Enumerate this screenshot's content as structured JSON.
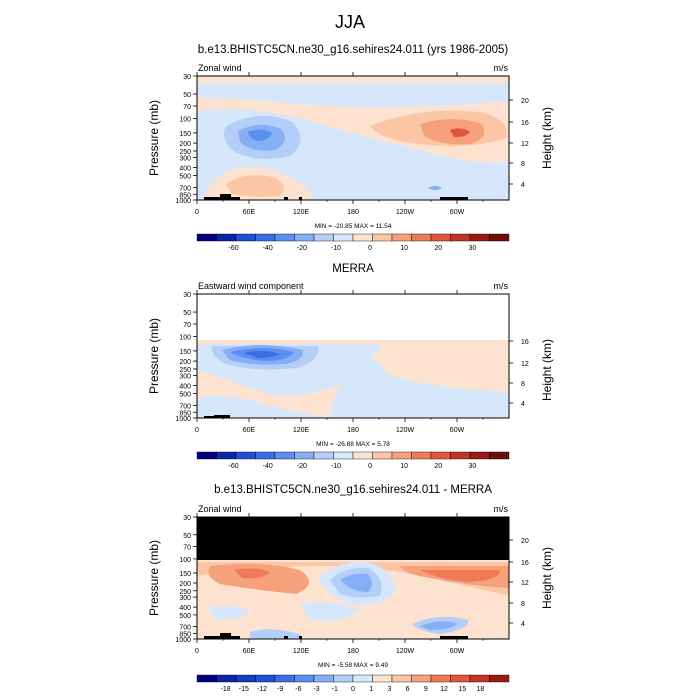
{
  "figure": {
    "title": "JJA"
  },
  "panels": [
    {
      "id": "model",
      "title": "b.e13.BHISTC5CN.ne30_g16.sehires24.011 (yrs 1986-2005)",
      "left_string": "Zonal wind",
      "right_string": "m/s",
      "stats": "MIN = -20.85  MAX =  11.54",
      "ylabel": "Pressure (mb)",
      "y2label": "Height (km)",
      "pressure_ticks": [
        "30",
        "50",
        "70",
        "100",
        "150",
        "200",
        "250",
        "300",
        "400",
        "500",
        "700",
        "850",
        "1000"
      ],
      "height_ticks": [
        "20",
        "16",
        "12",
        "8",
        "4"
      ],
      "lon_ticks": [
        "0",
        "60E",
        "120E",
        "180",
        "120W",
        "60W"
      ],
      "colorbar_labels": [
        "-60",
        "-40",
        "-20",
        "-10",
        "0",
        "10",
        "20",
        "30"
      ],
      "colorbar_colors": [
        "#00007f",
        "#0b24a8",
        "#1f4ed8",
        "#3a6fe6",
        "#5a8ef0",
        "#86aef5",
        "#b3cef8",
        "#d6e6fb",
        "#fde3cf",
        "#fbc6a6",
        "#f6a07c",
        "#ee7a56",
        "#e2553b",
        "#c43426",
        "#9b1a14",
        "#6e0c08"
      ]
    },
    {
      "id": "merra",
      "title": "MERRA",
      "left_string": "Eastward wind component",
      "right_string": "m/s",
      "stats": "MIN = -26.88  MAX =  5.78",
      "ylabel": "Pressure (mb)",
      "y2label": "Height (km)",
      "pressure_ticks": [
        "30",
        "50",
        "70",
        "100",
        "150",
        "200",
        "250",
        "300",
        "400",
        "500",
        "700",
        "850",
        "1000"
      ],
      "height_ticks": [
        "16",
        "12",
        "8",
        "4"
      ],
      "lon_ticks": [
        "0",
        "60E",
        "120E",
        "180",
        "120W",
        "60W"
      ],
      "colorbar_labels": [
        "-60",
        "-40",
        "-20",
        "-10",
        "0",
        "10",
        "20",
        "30"
      ],
      "colorbar_colors": [
        "#00007f",
        "#0b24a8",
        "#1f4ed8",
        "#3a6fe6",
        "#5a8ef0",
        "#86aef5",
        "#b3cef8",
        "#d6e6fb",
        "#fde3cf",
        "#fbc6a6",
        "#f6a07c",
        "#ee7a56",
        "#e2553b",
        "#c43426",
        "#9b1a14",
        "#6e0c08"
      ]
    },
    {
      "id": "diff",
      "title": "b.e13.BHISTC5CN.ne30_g16.sehires24.011 - MERRA",
      "left_string": "Zonal wind",
      "right_string": "m/s",
      "stats": "MIN = -5.58  MAX =  9.49",
      "ylabel": "Pressure (mb)",
      "y2label": "Height (km)",
      "pressure_ticks": [
        "30",
        "50",
        "70",
        "100",
        "150",
        "200",
        "250",
        "300",
        "400",
        "500",
        "700",
        "850",
        "1000"
      ],
      "height_ticks": [
        "20",
        "16",
        "12",
        "8",
        "4"
      ],
      "lon_ticks": [
        "0",
        "60E",
        "120E",
        "180",
        "120W",
        "60W"
      ],
      "colorbar_labels": [
        "-18",
        "-15",
        "-12",
        "-9",
        "-6",
        "-3",
        "-1",
        "0",
        "1",
        "3",
        "6",
        "9",
        "12",
        "15",
        "18"
      ],
      "colorbar_colors": [
        "#00007f",
        "#0b24a8",
        "#163cc4",
        "#1f4ed8",
        "#3a6fe6",
        "#5a8ef0",
        "#86aef5",
        "#b3cef8",
        "#d6e6fb",
        "#fde3cf",
        "#fbc6a6",
        "#f6a07c",
        "#ee7a56",
        "#e2553b",
        "#c43426",
        "#9b1a14"
      ]
    }
  ],
  "chart_data": [
    {
      "type": "heatmap",
      "title": "b.e13.BHISTC5CN.ne30_g16.sehires24.011 (yrs 1986-2005)",
      "variable": "Zonal wind",
      "units": "m/s",
      "x": [
        "0",
        "60E",
        "120E",
        "180",
        "120W",
        "60W"
      ],
      "y_pressure_mb": [
        30,
        50,
        70,
        100,
        150,
        200,
        250,
        300,
        400,
        500,
        700,
        850,
        1000
      ],
      "min": -20.85,
      "max": 11.54,
      "contour_levels": [
        -60,
        -40,
        -20,
        -10,
        0,
        10,
        20,
        30
      ]
    },
    {
      "type": "heatmap",
      "title": "MERRA",
      "variable": "Eastward wind component",
      "units": "m/s",
      "x": [
        "0",
        "60E",
        "120E",
        "180",
        "120W",
        "60W"
      ],
      "y_pressure_mb": [
        30,
        50,
        70,
        100,
        150,
        200,
        250,
        300,
        400,
        500,
        700,
        850,
        1000
      ],
      "min": -26.88,
      "max": 5.78,
      "contour_levels": [
        -60,
        -40,
        -20,
        -10,
        0,
        10,
        20,
        30
      ]
    },
    {
      "type": "heatmap",
      "title": "b.e13.BHISTC5CN.ne30_g16.sehires24.011 - MERRA",
      "variable": "Zonal wind",
      "units": "m/s",
      "x": [
        "0",
        "60E",
        "120E",
        "180",
        "120W",
        "60W"
      ],
      "y_pressure_mb": [
        30,
        50,
        70,
        100,
        150,
        200,
        250,
        300,
        400,
        500,
        700,
        850,
        1000
      ],
      "min": -5.58,
      "max": 9.49,
      "contour_levels": [
        -18,
        -15,
        -12,
        -9,
        -6,
        -3,
        -1,
        0,
        1,
        3,
        6,
        9,
        12,
        15,
        18
      ]
    }
  ]
}
